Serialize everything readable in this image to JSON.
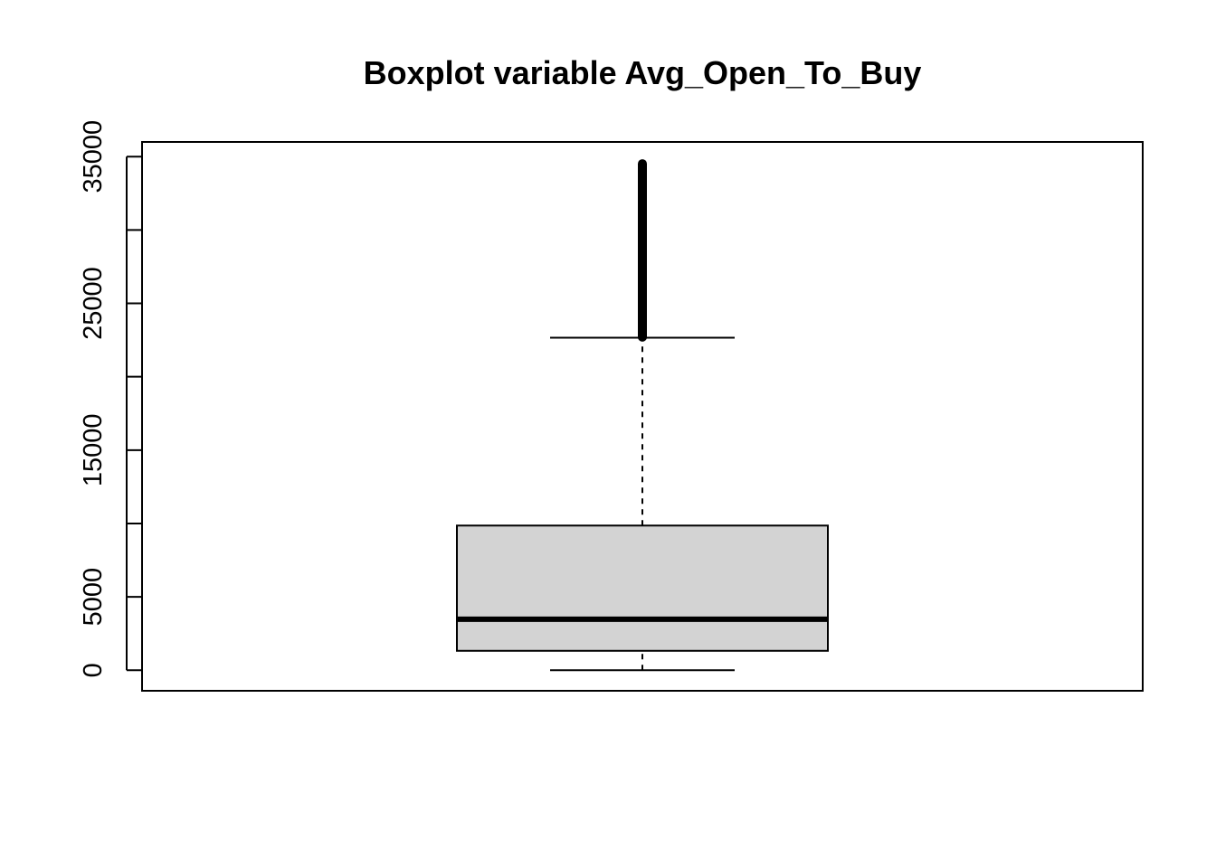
{
  "chart_data": {
    "type": "boxplot",
    "title": "Boxplot variable Avg_Open_To_Buy",
    "xlabel": "",
    "ylabel": "",
    "ylim": [
      -1400,
      36000
    ],
    "y_ticks": [
      0,
      5000,
      15000,
      25000,
      35000
    ],
    "y_minor_ticks": [
      0,
      5000,
      10000,
      15000,
      20000,
      25000,
      30000,
      35000
    ],
    "grid": false,
    "box": {
      "min": 3,
      "q1": 1324,
      "median": 3474,
      "q3": 9859,
      "whisker_high": 22660,
      "outlier_min": 22700,
      "outlier_max": 34516
    },
    "colors": {
      "box_fill": "#d3d3d3",
      "stroke": "#000000"
    }
  }
}
